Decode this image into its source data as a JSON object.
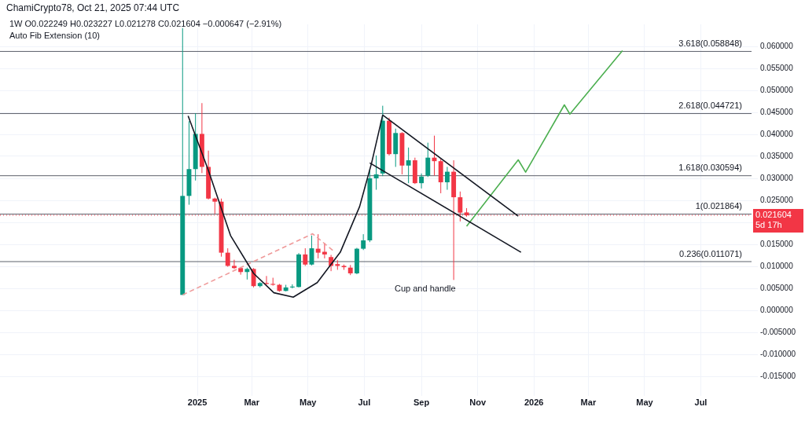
{
  "chart_data": {
    "type": "candlestick",
    "title": "ChamiCrypto78, Oct 21, 2025 07:44 UTC",
    "subtitle": "1W  O0.022249 H0.023227 L0.021278 C0.021604 −0.000647 (−2.91%)",
    "x": [
      "2024-12-16",
      "2024-12-23",
      "2024-12-30",
      "2025-01-06",
      "2025-01-13",
      "2025-01-20",
      "2025-01-27",
      "2025-02-03",
      "2025-02-10",
      "2025-02-17",
      "2025-02-24",
      "2025-03-03",
      "2025-03-10",
      "2025-03-17",
      "2025-03-24",
      "2025-03-31",
      "2025-04-07",
      "2025-04-14",
      "2025-04-21",
      "2025-04-28",
      "2025-05-05",
      "2025-05-12",
      "2025-05-19",
      "2025-05-26",
      "2025-06-02",
      "2025-06-09",
      "2025-06-16",
      "2025-06-23",
      "2025-06-30",
      "2025-07-07",
      "2025-07-14",
      "2025-07-21",
      "2025-07-28",
      "2025-08-04",
      "2025-08-11",
      "2025-08-18",
      "2025-08-25",
      "2025-09-01",
      "2025-09-08",
      "2025-09-15",
      "2025-09-22",
      "2025-09-29",
      "2025-10-06",
      "2025-10-13",
      "2025-10-20"
    ],
    "ohlc": [
      [
        0.0035,
        0.0645,
        0.0035,
        0.026
      ],
      [
        0.026,
        0.043,
        0.024,
        0.0321
      ],
      [
        0.0321,
        0.0448,
        0.0295,
        0.0401
      ],
      [
        0.0401,
        0.0471,
        0.0312,
        0.0326
      ],
      [
        0.0326,
        0.0363,
        0.0252,
        0.0254
      ],
      [
        0.0254,
        0.0256,
        0.0219,
        0.0247
      ],
      [
        0.0247,
        0.0254,
        0.0122,
        0.0131
      ],
      [
        0.0131,
        0.0141,
        0.0099,
        0.0101
      ],
      [
        0.0101,
        0.0115,
        0.0094,
        0.0096
      ],
      [
        0.0096,
        0.0098,
        0.0081,
        0.0087
      ],
      [
        0.0087,
        0.0097,
        0.007,
        0.0094
      ],
      [
        0.0094,
        0.0096,
        0.0052,
        0.0055
      ],
      [
        0.0055,
        0.0064,
        0.0052,
        0.0062
      ],
      [
        0.0062,
        0.0078,
        0.0058,
        0.006
      ],
      [
        0.006,
        0.0074,
        0.0056,
        0.0058
      ],
      [
        0.0058,
        0.006,
        0.0042,
        0.0044
      ],
      [
        0.0044,
        0.0058,
        0.0043,
        0.0052
      ],
      [
        0.0052,
        0.0059,
        0.005,
        0.0054
      ],
      [
        0.0053,
        0.013,
        0.0052,
        0.0127
      ],
      [
        0.0127,
        0.0141,
        0.0101,
        0.0104
      ],
      [
        0.0104,
        0.017,
        0.0102,
        0.0141
      ],
      [
        0.014,
        0.0173,
        0.0118,
        0.0131
      ],
      [
        0.0133,
        0.0153,
        0.0118,
        0.0127
      ],
      [
        0.0121,
        0.0126,
        0.0089,
        0.0101
      ],
      [
        0.0105,
        0.0114,
        0.0092,
        0.0101
      ],
      [
        0.0101,
        0.0104,
        0.0092,
        0.0098
      ],
      [
        0.0097,
        0.0103,
        0.008,
        0.0084
      ],
      [
        0.0084,
        0.0142,
        0.0082,
        0.014
      ],
      [
        0.014,
        0.0173,
        0.0137,
        0.0159
      ],
      [
        0.0159,
        0.0321,
        0.0155,
        0.03
      ],
      [
        0.03,
        0.0352,
        0.0274,
        0.0309
      ],
      [
        0.0311,
        0.0465,
        0.0305,
        0.0431
      ],
      [
        0.0431,
        0.0438,
        0.0352,
        0.0355
      ],
      [
        0.0355,
        0.0413,
        0.0326,
        0.0403
      ],
      [
        0.0403,
        0.0405,
        0.0309,
        0.0329
      ],
      [
        0.0329,
        0.037,
        0.0289,
        0.0341
      ],
      [
        0.0341,
        0.0347,
        0.0287,
        0.0289
      ],
      [
        0.0289,
        0.0311,
        0.0277,
        0.0304
      ],
      [
        0.0306,
        0.0381,
        0.0303,
        0.0347
      ],
      [
        0.0347,
        0.0397,
        0.0306,
        0.0339
      ],
      [
        0.0339,
        0.0344,
        0.0266,
        0.0291
      ],
      [
        0.0291,
        0.0326,
        0.0274,
        0.0315
      ],
      [
        0.0315,
        0.0341,
        0.0069,
        0.0257
      ],
      [
        0.0257,
        0.027,
        0.0202,
        0.0222
      ],
      [
        0.022249,
        0.023227,
        0.021278,
        0.021604
      ]
    ],
    "colors": [
      "#089981",
      "#089981",
      "#089981",
      "#f23645",
      "#f23645",
      "#f23645",
      "#f23645",
      "#f23645",
      "#f23645",
      "#f23645",
      "#089981",
      "#f23645",
      "#089981",
      "#f23645",
      "#f23645",
      "#f23645",
      "#089981",
      "#089981",
      "#089981",
      "#f23645",
      "#089981",
      "#f23645",
      "#f23645",
      "#f23645",
      "#f23645",
      "#f23645",
      "#f23645",
      "#089981",
      "#089981",
      "#089981",
      "#089981",
      "#089981",
      "#f23645",
      "#089981",
      "#f23645",
      "#089981",
      "#f23645",
      "#089981",
      "#089981",
      "#f23645",
      "#f23645",
      "#089981",
      "#f23645",
      "#f23645",
      "#f23645"
    ],
    "series": [
      {
        "type": "line",
        "color": "#131722",
        "x": [
          "2024-12-22",
          "2025-01-13",
          "2025-02-06",
          "2025-03-03",
          "2025-03-25",
          "2025-04-15",
          "2025-05-11",
          "2025-06-05",
          "2025-06-26",
          "2025-07-09",
          "2025-07-21"
        ],
        "values": [
          0.0442,
          0.0318,
          0.017,
          0.0084,
          0.004,
          0.003,
          0.0063,
          0.0132,
          0.0236,
          0.0335,
          0.0444
        ]
      },
      {
        "type": "line",
        "color": "#131722",
        "x": [
          "2025-07-21",
          "2025-12-15"
        ],
        "values": [
          0.0444,
          0.0214
        ]
      },
      {
        "type": "line",
        "color": "#131722",
        "x": [
          "2025-07-07",
          "2025-12-18"
        ],
        "values": [
          0.0335,
          0.0132
        ]
      },
      {
        "type": "line",
        "color": "#ef9a9a",
        "line_style": "dashed",
        "x": [
          "2024-12-16",
          "2025-05-06",
          "2025-05-28"
        ],
        "values": [
          0.0035,
          0.0174,
          0.0136
        ]
      },
      {
        "type": "line",
        "color": "#4caf50",
        "x": [
          "2025-10-20",
          "2025-12-15",
          "2025-12-23",
          "2026-02-03",
          "2026-02-09",
          "2026-04-07"
        ],
        "values": [
          0.0191,
          0.0342,
          0.0314,
          0.0467,
          0.0446,
          0.059
        ]
      }
    ],
    "ref_lines": [
      {
        "axis": "y",
        "value": 0.058848,
        "label": "3.618(0.058848)"
      },
      {
        "axis": "y",
        "value": 0.044721,
        "label": "2.618(0.044721)"
      },
      {
        "axis": "y",
        "value": 0.030594,
        "label": "1.618(0.030594)"
      },
      {
        "axis": "y",
        "value": 0.021864,
        "label": "1(0.021864)"
      },
      {
        "axis": "y",
        "value": 0.011071,
        "label": "0.236(0.011071)"
      },
      {
        "axis": "y",
        "value": 0.021604,
        "label": "0.021604 5d 17h",
        "color": "#f23645",
        "line_style": "dotted"
      }
    ],
    "annotations": [
      "Auto Fib Extension (10)",
      "Cup and handle"
    ],
    "xlim": [
      "2024-06-01",
      "2026-08-25"
    ],
    "xticks": [
      {
        "value": "2025-01-01",
        "label": "2025"
      },
      {
        "value": "2025-03-01",
        "label": "Mar"
      },
      {
        "value": "2025-05-01",
        "label": "May"
      },
      {
        "value": "2025-07-01",
        "label": "Jul"
      },
      {
        "value": "2025-09-01",
        "label": "Sep"
      },
      {
        "value": "2025-11-01",
        "label": "Nov"
      },
      {
        "value": "2026-01-01",
        "label": "2026"
      },
      {
        "value": "2026-03-01",
        "label": "Mar"
      },
      {
        "value": "2026-05-01",
        "label": "May"
      },
      {
        "value": "2026-07-01",
        "label": "Jul"
      }
    ],
    "ylim": [
      -0.018,
      0.065
    ],
    "yticks": [
      {
        "value": 0.06,
        "label": "0.060000"
      },
      {
        "value": 0.055,
        "label": "0.055000"
      },
      {
        "value": 0.05,
        "label": "0.050000"
      },
      {
        "value": 0.045,
        "label": "0.045000"
      },
      {
        "value": 0.04,
        "label": "0.040000"
      },
      {
        "value": 0.035,
        "label": "0.035000"
      },
      {
        "value": 0.03,
        "label": "0.030000"
      },
      {
        "value": 0.025,
        "label": "0.025000"
      },
      {
        "value": 0.02,
        "label": null
      },
      {
        "value": 0.015,
        "label": "0.015000"
      },
      {
        "value": 0.01,
        "label": "0.010000"
      },
      {
        "value": 0.005,
        "label": "0.005000"
      },
      {
        "value": 0,
        "label": "0.000000"
      },
      {
        "value": -0.005,
        "label": "-0.005000"
      },
      {
        "value": -0.01,
        "label": "-0.010000"
      },
      {
        "value": -0.015,
        "label": "-0.015000"
      }
    ],
    "grid": true
  }
}
